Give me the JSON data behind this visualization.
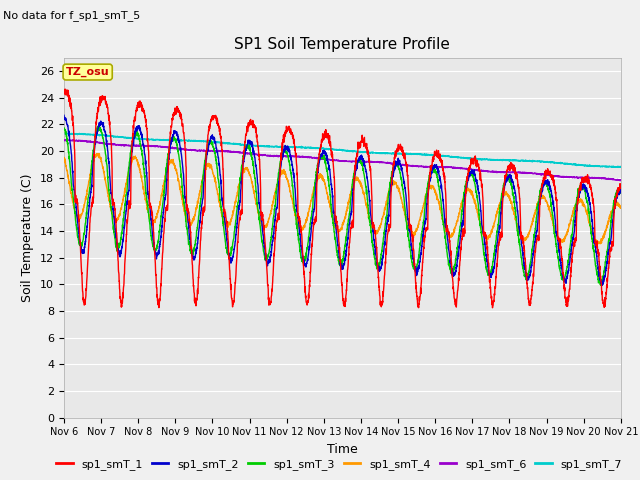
{
  "title": "SP1 Soil Temperature Profile",
  "no_data_text": "No data for f_sp1_smT_5",
  "xlabel": "Time",
  "ylabel": "Soil Temperature (C)",
  "ylim": [
    0,
    27
  ],
  "yticks": [
    0,
    2,
    4,
    6,
    8,
    10,
    12,
    14,
    16,
    18,
    20,
    22,
    24,
    26
  ],
  "tz_label": "TZ_osu",
  "fig_bg": "#f0f0f0",
  "plot_bg": "#e8e8e8",
  "grid_color": "#ffffff",
  "series_colors": {
    "sp1_smT_1": "#ff0000",
    "sp1_smT_2": "#0000cc",
    "sp1_smT_3": "#00cc00",
    "sp1_smT_4": "#ff9900",
    "sp1_smT_6": "#9900cc",
    "sp1_smT_7": "#00cccc"
  },
  "xtick_labels": [
    "Nov 6",
    "Nov 7",
    "Nov 8",
    "Nov 9",
    "Nov 10",
    "Nov 11",
    "Nov 12",
    "Nov 13",
    "Nov 14",
    "Nov 15",
    "Nov 16",
    "Nov 17",
    "Nov 18",
    "Nov 19",
    "Nov 20",
    "Nov 21"
  ]
}
